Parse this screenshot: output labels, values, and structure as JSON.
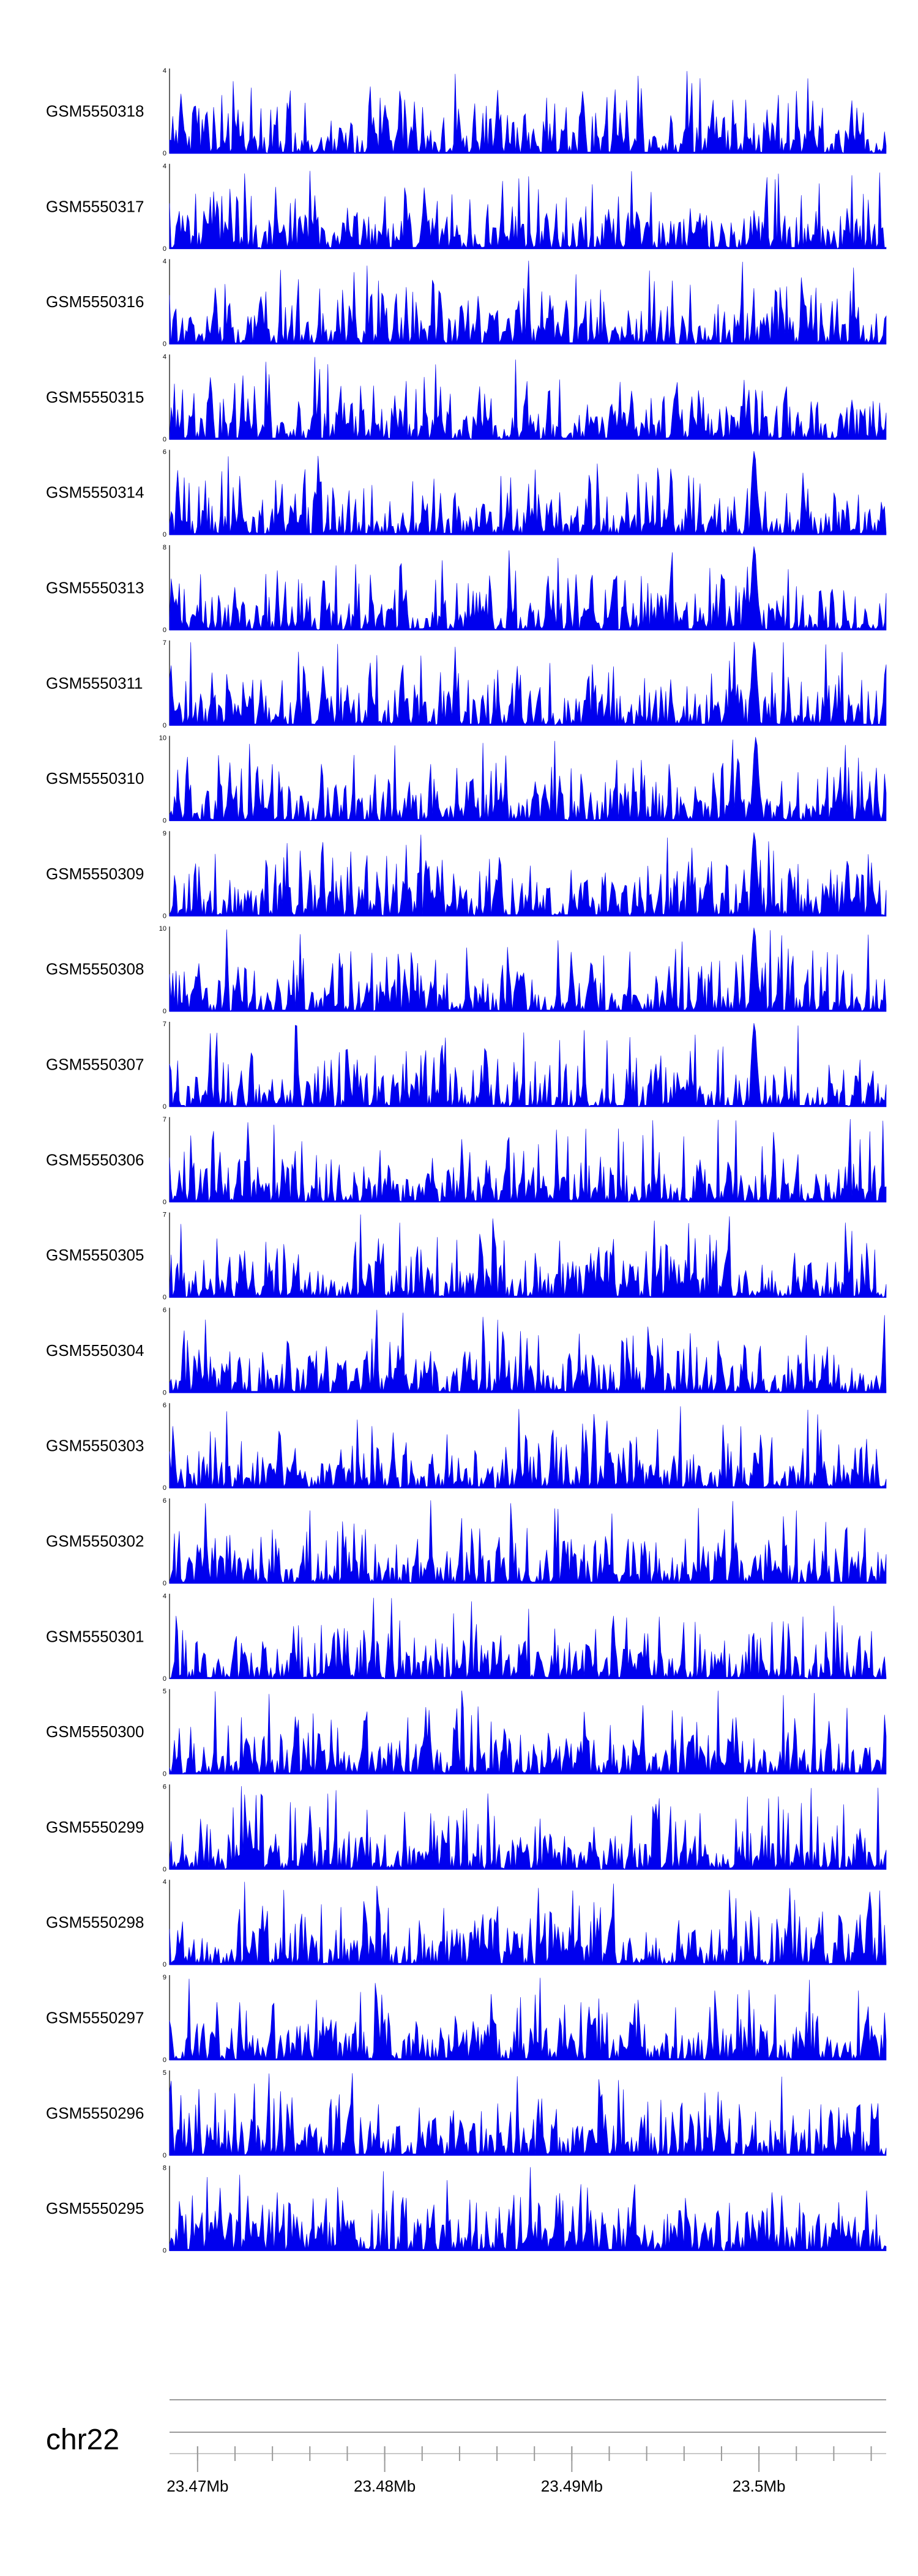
{
  "chart_data": {
    "type": "area",
    "chromosome": "chr22",
    "x_range_mb": [
      23.4685,
      23.5068
    ],
    "signal_color": "#0000ee",
    "tracks": [
      {
        "name": "GSM5550318",
        "ymax": 4,
        "seed": 318
      },
      {
        "name": "GSM5550317",
        "ymax": 4,
        "seed": 317
      },
      {
        "name": "GSM5550316",
        "ymax": 4,
        "seed": 316
      },
      {
        "name": "GSM5550315",
        "ymax": 4,
        "seed": 315
      },
      {
        "name": "GSM5550314",
        "ymax": 6,
        "seed": 314,
        "peak_mb": 23.4997
      },
      {
        "name": "GSM5550313",
        "ymax": 8,
        "seed": 313,
        "peak_mb": 23.4997
      },
      {
        "name": "GSM5550311",
        "ymax": 7,
        "seed": 311,
        "peak_mb": 23.4997
      },
      {
        "name": "GSM5550310",
        "ymax": 10,
        "seed": 310,
        "peak_mb": 23.4998
      },
      {
        "name": "GSM5550309",
        "ymax": 9,
        "seed": 309,
        "peak_mb": 23.4997
      },
      {
        "name": "GSM5550308",
        "ymax": 10,
        "seed": 308,
        "peak_mb": 23.4997
      },
      {
        "name": "GSM5550307",
        "ymax": 7,
        "seed": 307,
        "peak_mb": 23.4997
      },
      {
        "name": "GSM5550306",
        "ymax": 7,
        "seed": 306
      },
      {
        "name": "GSM5550305",
        "ymax": 7,
        "seed": 305
      },
      {
        "name": "GSM5550304",
        "ymax": 6,
        "seed": 304
      },
      {
        "name": "GSM5550303",
        "ymax": 6,
        "seed": 303
      },
      {
        "name": "GSM5550302",
        "ymax": 6,
        "seed": 302
      },
      {
        "name": "GSM5550301",
        "ymax": 4,
        "seed": 301
      },
      {
        "name": "GSM5550300",
        "ymax": 5,
        "seed": 300
      },
      {
        "name": "GSM5550299",
        "ymax": 6,
        "seed": 299
      },
      {
        "name": "GSM5550298",
        "ymax": 4,
        "seed": 298
      },
      {
        "name": "GSM5550297",
        "ymax": 9,
        "seed": 297
      },
      {
        "name": "GSM5550296",
        "ymax": 5,
        "seed": 296
      },
      {
        "name": "GSM5550295",
        "ymax": 8,
        "seed": 295
      }
    ],
    "ymin": 0,
    "axis": {
      "major_ticks": [
        {
          "mb": 23.47,
          "label": "23.47Mb"
        },
        {
          "mb": 23.48,
          "label": "23.48Mb"
        },
        {
          "mb": 23.49,
          "label": "23.49Mb"
        },
        {
          "mb": 23.5,
          "label": "23.5Mb"
        }
      ],
      "minor_tick_step_mb": 0.002
    }
  }
}
